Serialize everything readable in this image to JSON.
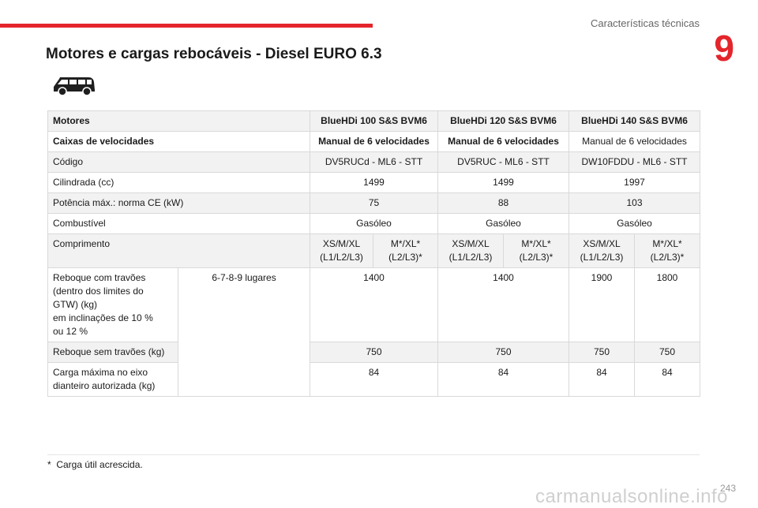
{
  "header": {
    "section": "Características técnicas",
    "chapter": "9"
  },
  "title": "Motores e cargas rebocáveis - Diesel EURO 6.3",
  "icon": "van-icon",
  "table": {
    "motores_label": "Motores",
    "engines": [
      "BlueHDi 100 S&S BVM6",
      "BlueHDi 120 S&S BVM6",
      "BlueHDi 140 S&S BVM6"
    ],
    "gearbox_label": "Caixas de velocidades",
    "gearboxes": [
      "Manual de 6 velocidades",
      "Manual de 6 velocidades",
      "Manual de 6 velocidades"
    ],
    "code_label": "Código",
    "codes": [
      "DV5RUCd - ML6 - STT",
      "DV5RUC - ML6 - STT",
      "DW10FDDU - ML6 - STT"
    ],
    "displacement_label": "Cilindrada (cc)",
    "displacements": [
      "1499",
      "1499",
      "1997"
    ],
    "power_label": "Potência máx.: norma CE (kW)",
    "powers": [
      "75",
      "88",
      "103"
    ],
    "fuel_label": "Combustível",
    "fuels": [
      "Gasóleo",
      "Gasóleo",
      "Gasóleo"
    ],
    "length_label": "Comprimento",
    "lengths": [
      [
        "XS/M/XL",
        "(L1/L2/L3)"
      ],
      [
        "M*/XL*",
        "(L2/L3)*"
      ],
      [
        "XS/M/XL",
        "(L1/L2/L3)"
      ],
      [
        "M*/XL*",
        "(L2/L3)*"
      ],
      [
        "XS/M/XL",
        "(L1/L2/L3)"
      ],
      [
        "M*/XL*",
        "(L2/L3)*"
      ]
    ],
    "braked_label": [
      "Reboque com travões",
      "(dentro dos limites do",
      "GTW) (kg)",
      "em inclinações de 10 %",
      "ou 12 %"
    ],
    "seats_label": "6-7-8-9 lugares",
    "braked": [
      "1400",
      "1400",
      "1900",
      "1800"
    ],
    "unbraked_label": "Reboque sem travões (kg)",
    "unbraked": [
      "750",
      "750",
      "750",
      "750"
    ],
    "axle_label": [
      "Carga máxima no eixo",
      "dianteiro autorizada (kg)"
    ],
    "axle": [
      "84",
      "84",
      "84",
      "84"
    ]
  },
  "footnote": {
    "mark": "*",
    "text": "Carga útil acrescida."
  },
  "page_number": "243",
  "watermark": "carmanualsonline.info"
}
